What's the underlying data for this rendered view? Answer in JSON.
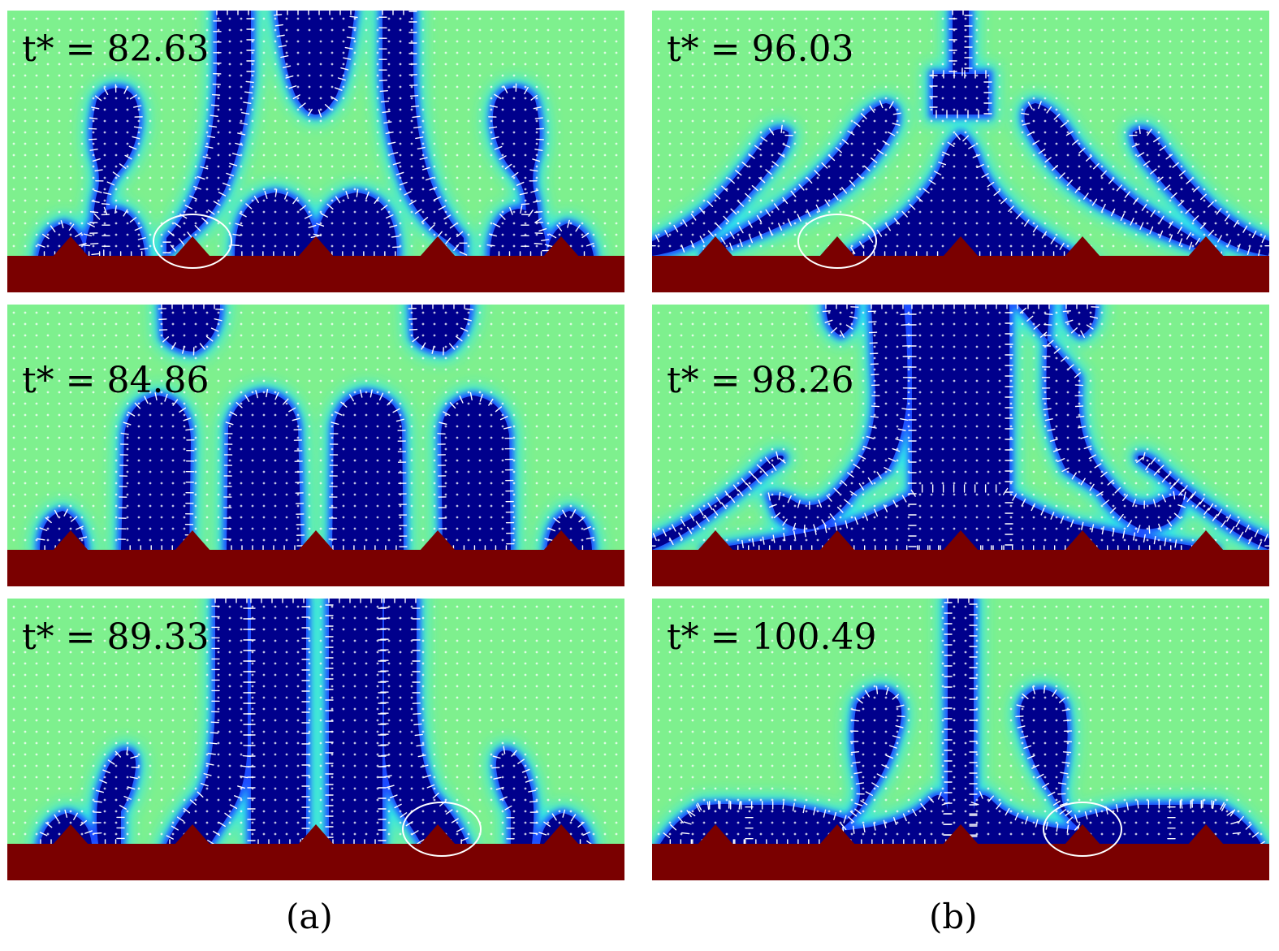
{
  "figure": {
    "columns": [
      {
        "caption": "(a)",
        "panels": [
          {
            "time_label": "t* = 82.63",
            "time_value": 82.63,
            "highlight_peak": 2
          },
          {
            "time_label": "t* = 84.86",
            "time_value": 84.86,
            "highlight_peak": null
          },
          {
            "time_label": "t* = 89.33",
            "time_value": 89.33,
            "highlight_peak": 4
          }
        ]
      },
      {
        "caption": "(b)",
        "panels": [
          {
            "time_label": "t* = 96.03",
            "time_value": 96.03,
            "highlight_peak": 2
          },
          {
            "time_label": "t* = 98.26",
            "time_value": 98.26,
            "highlight_peak": null
          },
          {
            "time_label": "t* = 100.49",
            "time_value": 100.49,
            "highlight_peak": 4
          }
        ]
      }
    ],
    "colors": {
      "background_phase": "#7ef08e",
      "vapor_phase": "#00008c",
      "interface_blue": "#1a4cff",
      "interface_cyan": "#2ee6f0",
      "solid_wall": "#7a0000",
      "velocity_vectors": "#ffffff",
      "highlight_circle": "#ffffff"
    }
  }
}
